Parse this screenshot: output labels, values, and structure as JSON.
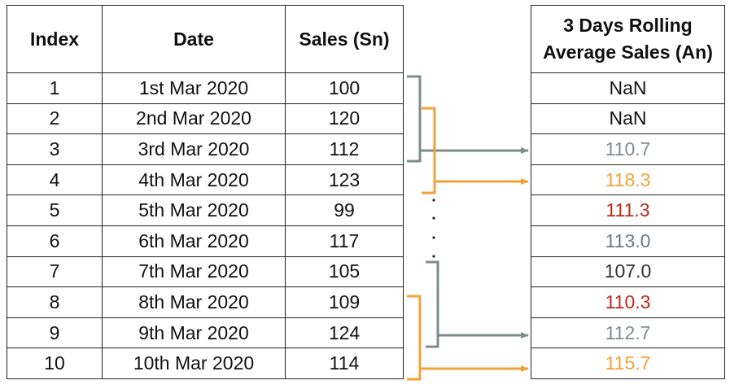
{
  "left_table": {
    "headers": [
      "Index",
      "Date",
      "Sales (Sn)"
    ],
    "rows": [
      [
        "1",
        "1st Mar 2020",
        "100"
      ],
      [
        "2",
        "2nd Mar 2020",
        "120"
      ],
      [
        "3",
        "3rd Mar 2020",
        "112"
      ],
      [
        "4",
        "4th Mar 2020",
        "123"
      ],
      [
        "5",
        "5th Mar 2020",
        "99"
      ],
      [
        "6",
        "6th Mar 2020",
        "117"
      ],
      [
        "7",
        "7th Mar 2020",
        "105"
      ],
      [
        "8",
        "8th Mar 2020",
        "109"
      ],
      [
        "9",
        "9th Mar 2020",
        "124"
      ],
      [
        "10",
        "10th Mar 2020",
        "114"
      ]
    ]
  },
  "right_table": {
    "header_line1": "3 Days Rolling",
    "header_line2": "Average Sales (An)",
    "values": [
      {
        "text": "NaN",
        "color": "#111111"
      },
      {
        "text": "NaN",
        "color": "#111111"
      },
      {
        "text": "110.7",
        "color": "#7f8c8d"
      },
      {
        "text": "118.3",
        "color": "#f0a33a"
      },
      {
        "text": "111.3",
        "color": "#c0281c"
      },
      {
        "text": "113.0",
        "color": "#6d7a84"
      },
      {
        "text": "107.0",
        "color": "#333333"
      },
      {
        "text": "110.3",
        "color": "#c0281c"
      },
      {
        "text": "112.7",
        "color": "#7f8c8d"
      },
      {
        "text": "115.7",
        "color": "#f0a33a"
      }
    ]
  },
  "connector_colors": {
    "gray": "#7f8c8d",
    "orange": "#f0a33a"
  }
}
